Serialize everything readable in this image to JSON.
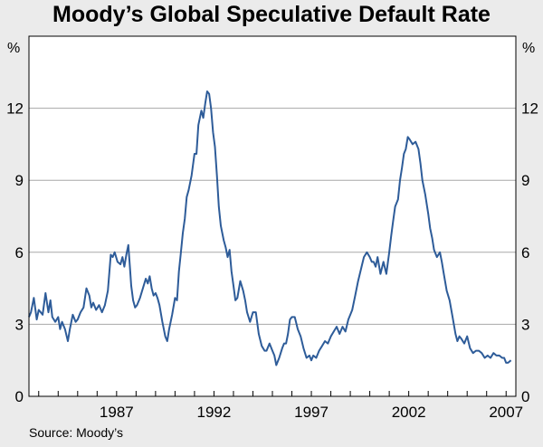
{
  "chart_data": {
    "type": "line",
    "title": "Moody’s Global Speculative Default Rate",
    "ylabel_left": "%",
    "ylabel_right": "%",
    "source": "Source: Moody’s",
    "ylim": [
      0,
      15
    ],
    "yticks": [
      0,
      3,
      6,
      9,
      12
    ],
    "xlim": [
      1982.5,
      2007.5
    ],
    "xticks": [
      1987,
      1992,
      1997,
      2002,
      2007
    ],
    "xtick_labels": [
      "1987",
      "1992",
      "1997",
      "2002",
      "2007"
    ],
    "grid": "horizontal",
    "series": [
      {
        "color": "#2e5c99",
        "x": [
          1982.5,
          1982.6,
          1982.75,
          1982.9,
          1983.0,
          1983.2,
          1983.35,
          1983.5,
          1983.6,
          1983.7,
          1983.85,
          1984.0,
          1984.1,
          1984.2,
          1984.35,
          1984.5,
          1984.6,
          1984.75,
          1984.9,
          1985.0,
          1985.15,
          1985.3,
          1985.45,
          1985.6,
          1985.7,
          1985.8,
          1985.95,
          1986.1,
          1986.25,
          1986.4,
          1986.55,
          1986.7,
          1986.8,
          1986.9,
          1987.05,
          1987.2,
          1987.3,
          1987.4,
          1987.5,
          1987.6,
          1987.7,
          1987.75,
          1987.85,
          1987.95,
          1988.05,
          1988.2,
          1988.35,
          1988.5,
          1988.6,
          1988.7,
          1988.8,
          1988.9,
          1989.0,
          1989.1,
          1989.2,
          1989.35,
          1989.5,
          1989.6,
          1989.7,
          1989.85,
          1990.0,
          1990.1,
          1990.2,
          1990.3,
          1990.4,
          1990.5,
          1990.6,
          1990.7,
          1990.85,
          1991.0,
          1991.1,
          1991.2,
          1991.35,
          1991.45,
          1991.55,
          1991.65,
          1991.75,
          1991.85,
          1991.95,
          1992.05,
          1992.15,
          1992.25,
          1992.35,
          1992.5,
          1992.6,
          1992.7,
          1992.8,
          1992.9,
          1993.0,
          1993.1,
          1993.2,
          1993.35,
          1993.5,
          1993.6,
          1993.7,
          1993.85,
          1994.0,
          1994.15,
          1994.3,
          1994.45,
          1994.6,
          1994.7,
          1994.85,
          1995.0,
          1995.1,
          1995.2,
          1995.35,
          1995.5,
          1995.6,
          1995.7,
          1995.8,
          1995.9,
          1996.0,
          1996.15,
          1996.3,
          1996.45,
          1996.6,
          1996.75,
          1996.9,
          1997.0,
          1997.1,
          1997.25,
          1997.4,
          1997.55,
          1997.7,
          1997.85,
          1998.0,
          1998.15,
          1998.3,
          1998.45,
          1998.6,
          1998.75,
          1998.9,
          1999.0,
          1999.1,
          1999.25,
          1999.4,
          1999.55,
          1999.7,
          1999.85,
          2000.0,
          2000.1,
          2000.2,
          2000.3,
          2000.4,
          2000.55,
          2000.7,
          2000.85,
          2001.0,
          2001.1,
          2001.2,
          2001.3,
          2001.45,
          2001.55,
          2001.65,
          2001.75,
          2001.85,
          2001.95,
          2002.05,
          2002.2,
          2002.35,
          2002.5,
          2002.6,
          2002.7,
          2002.85,
          2003.0,
          2003.1,
          2003.2,
          2003.3,
          2003.45,
          2003.6,
          2003.7,
          2003.8,
          2003.95,
          2004.1,
          2004.25,
          2004.4,
          2004.5,
          2004.6,
          2004.7,
          2004.85,
          2005.0,
          2005.15,
          2005.3,
          2005.45,
          2005.6,
          2005.75,
          2005.9,
          2006.05,
          2006.2,
          2006.35,
          2006.5,
          2006.65,
          2006.8,
          2006.9,
          2007.0,
          2007.1,
          2007.25
        ],
        "y": [
          3.3,
          3.5,
          4.1,
          3.2,
          3.6,
          3.4,
          4.3,
          3.5,
          4.0,
          3.3,
          3.1,
          3.3,
          2.8,
          3.1,
          2.8,
          2.3,
          2.8,
          3.4,
          3.1,
          3.2,
          3.5,
          3.7,
          4.5,
          4.2,
          3.7,
          3.9,
          3.6,
          3.8,
          3.5,
          3.8,
          4.4,
          5.9,
          5.8,
          6.0,
          5.6,
          5.5,
          5.8,
          5.4,
          5.9,
          6.3,
          5.2,
          4.6,
          4.0,
          3.7,
          3.8,
          4.1,
          4.5,
          4.9,
          4.7,
          5.0,
          4.5,
          4.2,
          4.3,
          4.1,
          3.8,
          3.1,
          2.5,
          2.3,
          2.8,
          3.4,
          4.1,
          4.0,
          5.2,
          6.0,
          6.8,
          7.4,
          8.3,
          8.6,
          9.2,
          10.1,
          10.1,
          11.3,
          11.9,
          11.6,
          12.2,
          12.7,
          12.6,
          12.0,
          11.0,
          10.4,
          9.2,
          7.9,
          7.1,
          6.5,
          6.2,
          5.8,
          6.1,
          5.2,
          4.6,
          4.0,
          4.1,
          4.8,
          4.4,
          4.0,
          3.5,
          3.1,
          3.5,
          3.5,
          2.6,
          2.1,
          1.9,
          1.9,
          2.2,
          1.9,
          1.7,
          1.3,
          1.6,
          2.0,
          2.2,
          2.2,
          2.6,
          3.2,
          3.3,
          3.3,
          2.8,
          2.5,
          2.0,
          1.6,
          1.7,
          1.5,
          1.7,
          1.6,
          1.9,
          2.1,
          2.3,
          2.2,
          2.5,
          2.7,
          2.9,
          2.6,
          2.9,
          2.7,
          3.2,
          3.4,
          3.6,
          4.2,
          4.8,
          5.3,
          5.8,
          6.0,
          5.8,
          5.6,
          5.6,
          5.4,
          5.8,
          5.1,
          5.6,
          5.1,
          6.0,
          6.7,
          7.3,
          7.9,
          8.2,
          9.0,
          9.5,
          10.1,
          10.3,
          10.8,
          10.7,
          10.5,
          10.6,
          10.3,
          9.7,
          9.0,
          8.4,
          7.6,
          7.0,
          6.6,
          6.1,
          5.8,
          6.0,
          5.6,
          5.1,
          4.4,
          4.0,
          3.3,
          2.6,
          2.3,
          2.5,
          2.4,
          2.2,
          2.5,
          2.0,
          1.8,
          1.9,
          1.9,
          1.8,
          1.6,
          1.7,
          1.6,
          1.8,
          1.7,
          1.7,
          1.6,
          1.6,
          1.4,
          1.4,
          1.5
        ]
      }
    ]
  }
}
